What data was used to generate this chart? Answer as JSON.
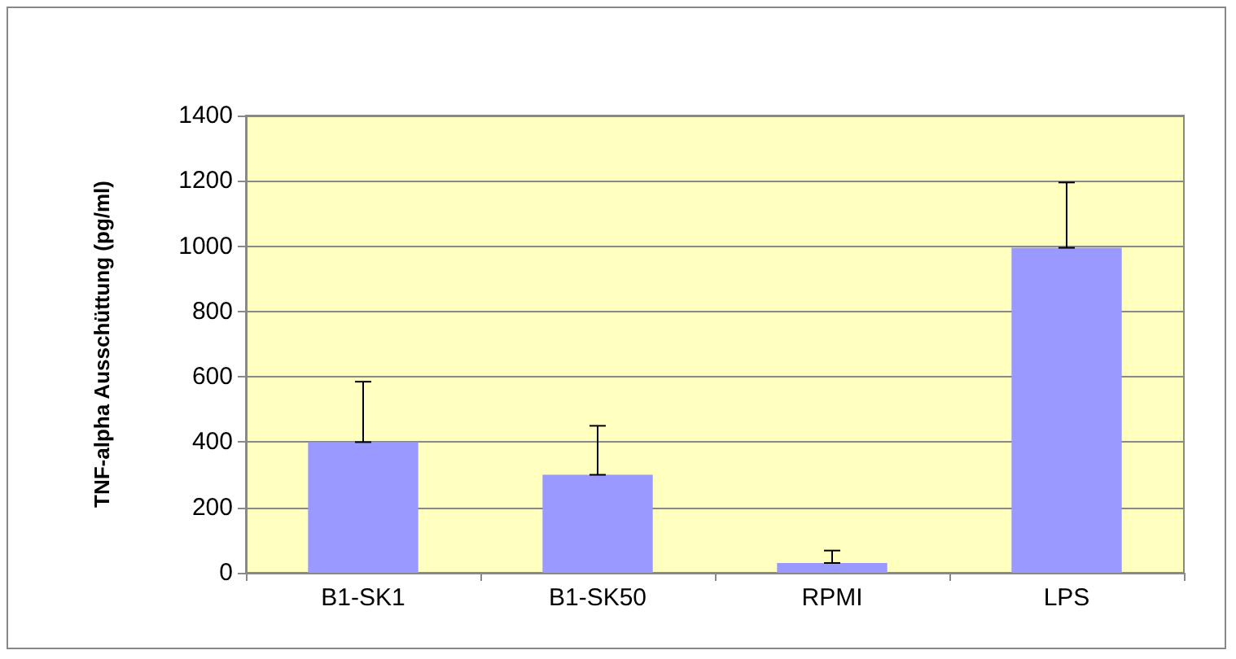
{
  "chart_data": {
    "type": "bar",
    "ylabel": "TNF-alpha Ausschüttung (pg/ml)",
    "categories": [
      "B1-SK1",
      "B1-SK50",
      "RPMI",
      "LPS"
    ],
    "values": [
      400,
      300,
      30,
      995
    ],
    "color": "#9999ff",
    "errors": [
      [
        400,
        585
      ],
      [
        300,
        450
      ],
      [
        30,
        68
      ],
      [
        995,
        1195
      ]
    ],
    "ylim": [
      0,
      1400
    ],
    "yticks": [
      0,
      200,
      400,
      600,
      800,
      1000,
      1200,
      1400
    ],
    "grid": "y"
  }
}
